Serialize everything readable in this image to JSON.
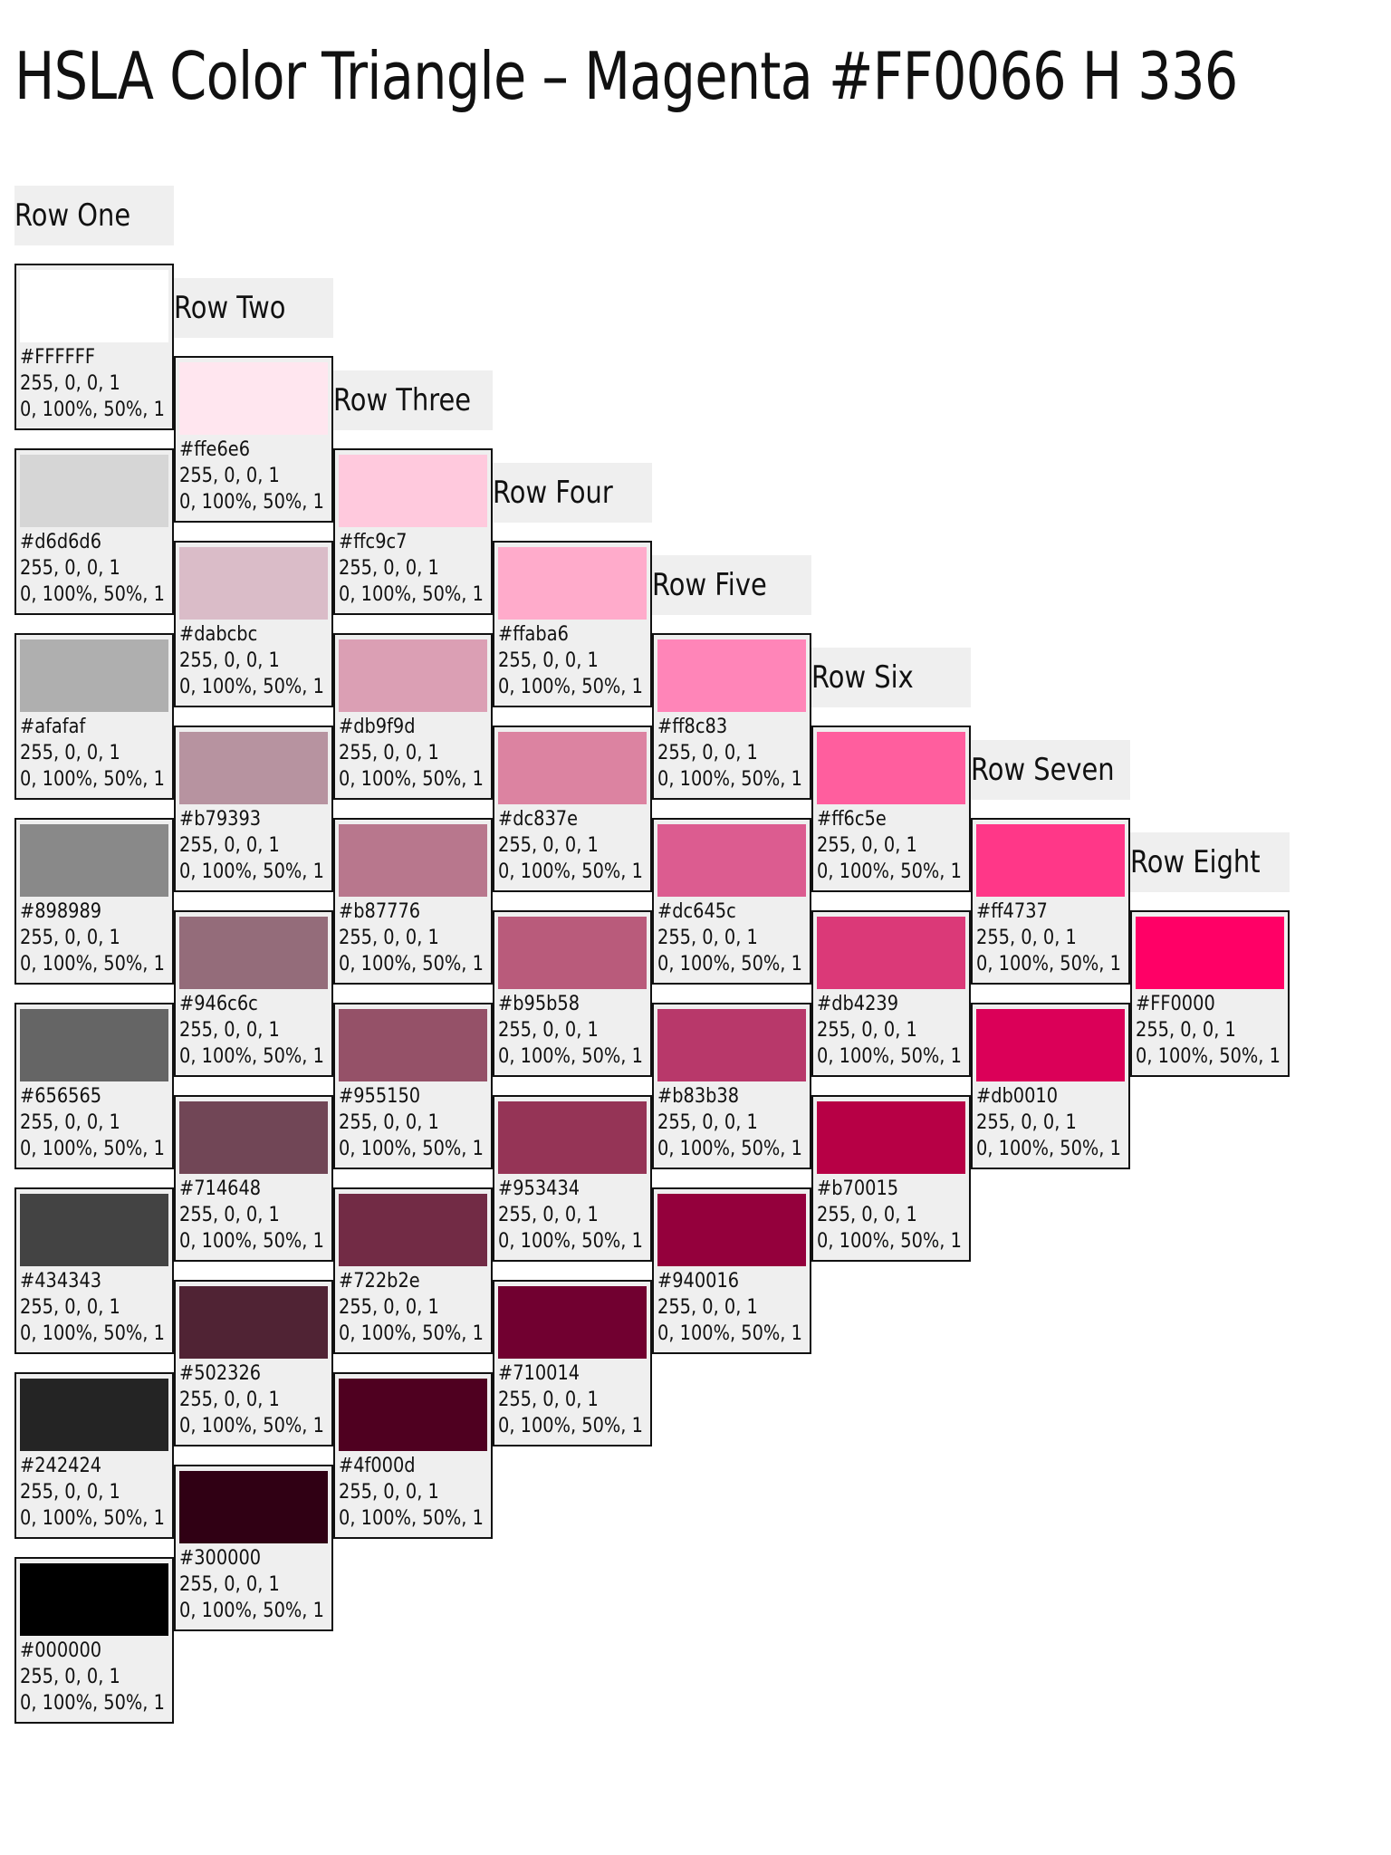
{
  "title": "HSLA Color Triangle – Magenta #FF0066 H 336",
  "rows": [
    {
      "label": "Row One",
      "cells": [
        {
          "hex": "#FFFFFF",
          "rgb": "255, 0, 0, 1",
          "hsl": "0, 100%, 50%, 1",
          "color": "#ffffff"
        },
        {
          "hex": "#d6d6d6",
          "rgb": "255, 0, 0, 1",
          "hsl": "0, 100%, 50%, 1",
          "color": "#d6d6d6"
        },
        {
          "hex": "#afafaf",
          "rgb": "255, 0, 0, 1",
          "hsl": "0, 100%, 50%, 1",
          "color": "#afafaf"
        },
        {
          "hex": "#898989",
          "rgb": "255, 0, 0, 1",
          "hsl": "0, 100%, 50%, 1",
          "color": "#898989"
        },
        {
          "hex": "#656565",
          "rgb": "255, 0, 0, 1",
          "hsl": "0, 100%, 50%, 1",
          "color": "#656565"
        },
        {
          "hex": "#434343",
          "rgb": "255, 0, 0, 1",
          "hsl": "0, 100%, 50%, 1",
          "color": "#434343"
        },
        {
          "hex": "#242424",
          "rgb": "255, 0, 0, 1",
          "hsl": "0, 100%, 50%, 1",
          "color": "#242424"
        },
        {
          "hex": "#000000",
          "rgb": "255, 0, 0, 1",
          "hsl": "0, 100%, 50%, 1",
          "color": "#000000"
        }
      ]
    },
    {
      "label": "Row Two",
      "cells": [
        {
          "hex": "#ffe6e6",
          "rgb": "255, 0, 0, 1",
          "hsl": "0, 100%, 50%, 1",
          "color": "#ffe6ef"
        },
        {
          "hex": "#dabcbc",
          "rgb": "255, 0, 0, 1",
          "hsl": "0, 100%, 50%, 1",
          "color": "#dabcc8"
        },
        {
          "hex": "#b79393",
          "rgb": "255, 0, 0, 1",
          "hsl": "0, 100%, 50%, 1",
          "color": "#b793a0"
        },
        {
          "hex": "#946c6c",
          "rgb": "255, 0, 0, 1",
          "hsl": "0, 100%, 50%, 1",
          "color": "#946c7a"
        },
        {
          "hex": "#714648",
          "rgb": "255, 0, 0, 1",
          "hsl": "0, 100%, 50%, 1",
          "color": "#714656"
        },
        {
          "hex": "#502326",
          "rgb": "255, 0, 0, 1",
          "hsl": "0, 100%, 50%, 1",
          "color": "#502334"
        },
        {
          "hex": "#300000",
          "rgb": "255, 0, 0, 1",
          "hsl": "0, 100%, 50%, 1",
          "color": "#300014"
        }
      ]
    },
    {
      "label": "Row Three",
      "cells": [
        {
          "hex": "#ffc9c7",
          "rgb": "255, 0, 0, 1",
          "hsl": "0, 100%, 50%, 1",
          "color": "#ffc9dd"
        },
        {
          "hex": "#db9f9d",
          "rgb": "255, 0, 0, 1",
          "hsl": "0, 100%, 50%, 1",
          "color": "#db9fb4"
        },
        {
          "hex": "#b87776",
          "rgb": "255, 0, 0, 1",
          "hsl": "0, 100%, 50%, 1",
          "color": "#b8778d"
        },
        {
          "hex": "#955150",
          "rgb": "255, 0, 0, 1",
          "hsl": "0, 100%, 50%, 1",
          "color": "#955168"
        },
        {
          "hex": "#722b2e",
          "rgb": "255, 0, 0, 1",
          "hsl": "0, 100%, 50%, 1",
          "color": "#722b45"
        },
        {
          "hex": "#4f000d",
          "rgb": "255, 0, 0, 1",
          "hsl": "0, 100%, 50%, 1",
          "color": "#4f0020"
        }
      ]
    },
    {
      "label": "Row Four",
      "cells": [
        {
          "hex": "#ffaba6",
          "rgb": "255, 0, 0, 1",
          "hsl": "0, 100%, 50%, 1",
          "color": "#ffabcb"
        },
        {
          "hex": "#dc837e",
          "rgb": "255, 0, 0, 1",
          "hsl": "0, 100%, 50%, 1",
          "color": "#dc83a1"
        },
        {
          "hex": "#b95b58",
          "rgb": "255, 0, 0, 1",
          "hsl": "0, 100%, 50%, 1",
          "color": "#b95b7b"
        },
        {
          "hex": "#953434",
          "rgb": "255, 0, 0, 1",
          "hsl": "0, 100%, 50%, 1",
          "color": "#953456"
        },
        {
          "hex": "#710014",
          "rgb": "255, 0, 0, 1",
          "hsl": "0, 100%, 50%, 1",
          "color": "#710030"
        }
      ]
    },
    {
      "label": "Row Five",
      "cells": [
        {
          "hex": "#ff8c83",
          "rgb": "255, 0, 0, 1",
          "hsl": "0, 100%, 50%, 1",
          "color": "#ff85b8"
        },
        {
          "hex": "#dc645c",
          "rgb": "255, 0, 0, 1",
          "hsl": "0, 100%, 50%, 1",
          "color": "#dc5c90"
        },
        {
          "hex": "#b83b38",
          "rgb": "255, 0, 0, 1",
          "hsl": "0, 100%, 50%, 1",
          "color": "#b8386a"
        },
        {
          "hex": "#940016",
          "rgb": "255, 0, 0, 1",
          "hsl": "0, 100%, 50%, 1",
          "color": "#94003c"
        }
      ]
    },
    {
      "label": "Row Six",
      "cells": [
        {
          "hex": "#ff6c5e",
          "rgb": "255, 0, 0, 1",
          "hsl": "0, 100%, 50%, 1",
          "color": "#ff5e9e"
        },
        {
          "hex": "#db4239",
          "rgb": "255, 0, 0, 1",
          "hsl": "0, 100%, 50%, 1",
          "color": "#db3978"
        },
        {
          "hex": "#b70015",
          "rgb": "255, 0, 0, 1",
          "hsl": "0, 100%, 50%, 1",
          "color": "#b70045"
        }
      ]
    },
    {
      "label": "Row Seven",
      "cells": [
        {
          "hex": "#ff4737",
          "rgb": "255, 0, 0, 1",
          "hsl": "0, 100%, 50%, 1",
          "color": "#ff3788"
        },
        {
          "hex": "#db0010",
          "rgb": "255, 0, 0, 1",
          "hsl": "0, 100%, 50%, 1",
          "color": "#db0058"
        }
      ]
    },
    {
      "label": "Row Eight",
      "cells": [
        {
          "hex": "#FF0000",
          "rgb": "255, 0, 0, 1",
          "hsl": "0, 100%, 50%, 1",
          "color": "#ff0066"
        }
      ]
    }
  ]
}
